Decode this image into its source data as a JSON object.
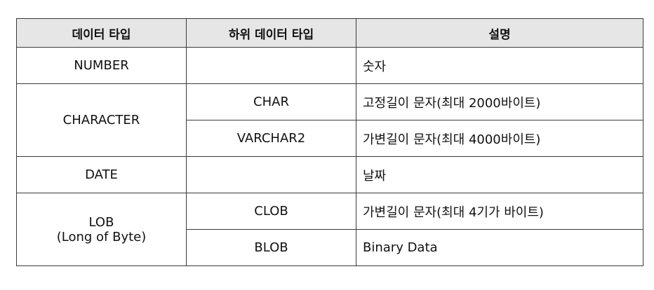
{
  "headers": [
    "데이터 타입",
    "하위 데이터 타입",
    "설명"
  ],
  "rows": {
    "number": {
      "type": "NUMBER",
      "sub": "",
      "desc": "숫자"
    },
    "character": {
      "type": "CHARACTER",
      "subs": [
        {
          "sub": "CHAR",
          "desc": "고정길이 문자(최대 2000바이트)"
        },
        {
          "sub": "VARCHAR2",
          "desc": "가변길이 문자(최대 4000바이트)"
        }
      ]
    },
    "date": {
      "type": "DATE",
      "sub": "",
      "desc": "날짜"
    },
    "lob": {
      "type_line1": "LOB",
      "type_line2": "(Long of Byte)",
      "subs": [
        {
          "sub": "CLOB",
          "desc": "가변길이 문자(최대 4기가 바이트)"
        },
        {
          "sub": "BLOB",
          "desc": "Binary Data"
        }
      ]
    }
  }
}
